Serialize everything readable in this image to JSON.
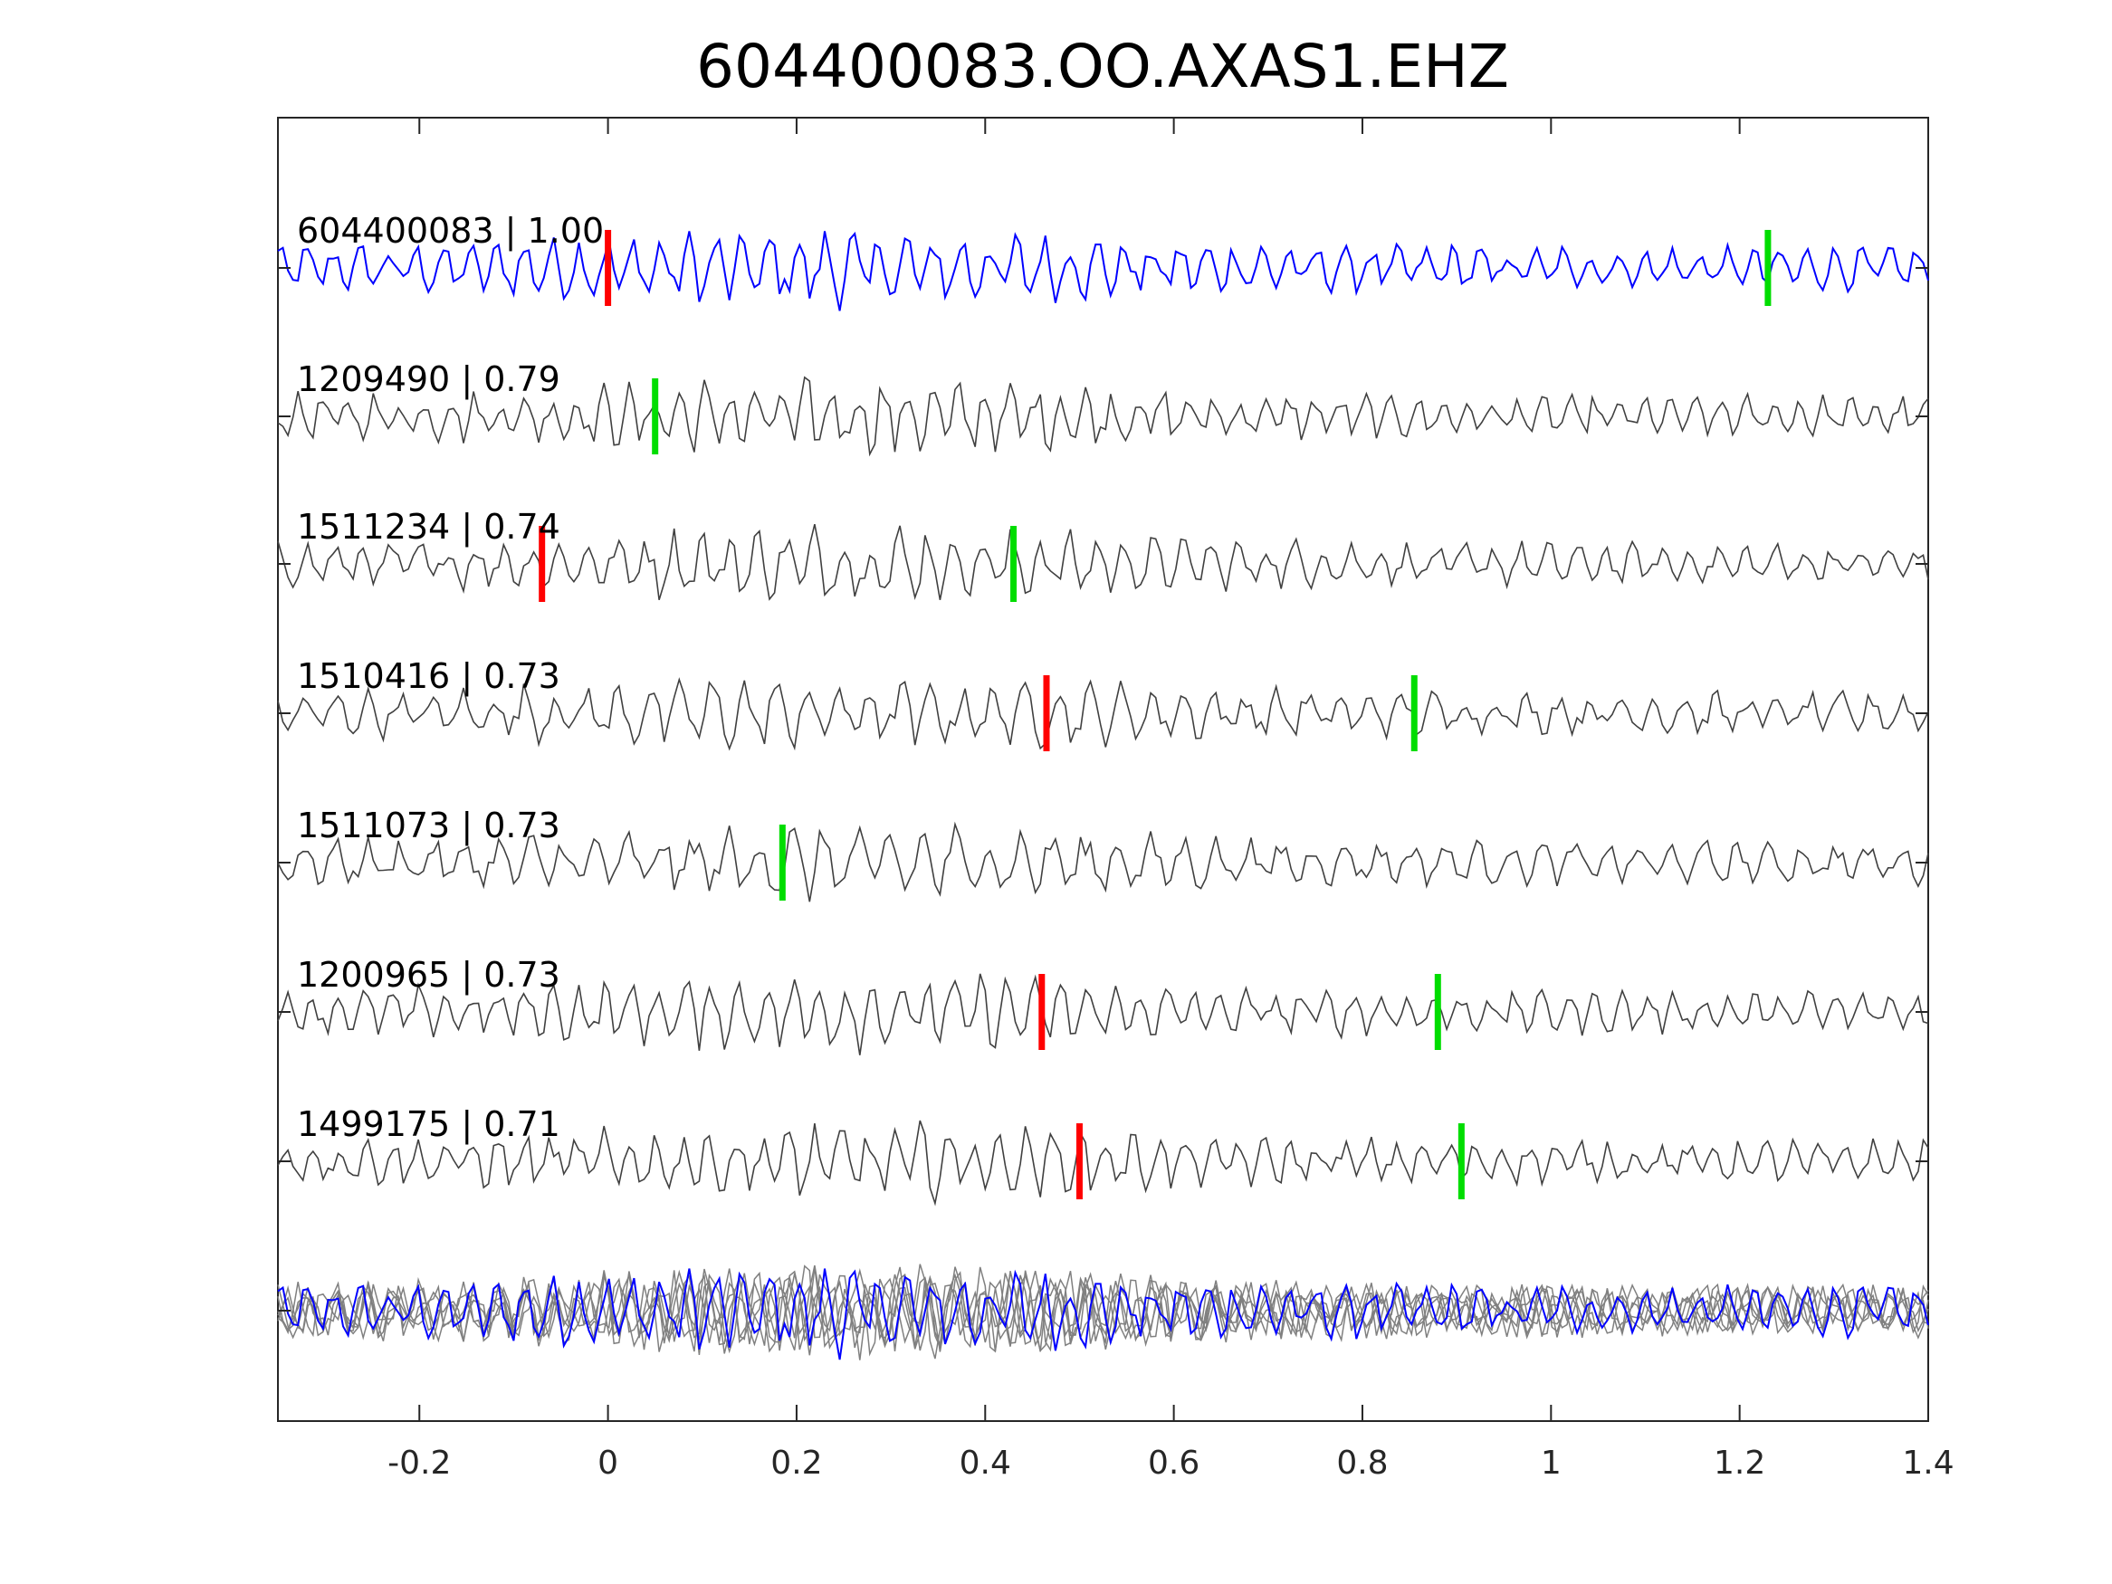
{
  "chart_data": {
    "type": "line",
    "title": "604400083.OO.AXAS1.EHZ",
    "xlabel": "",
    "ylabel": "",
    "xlim": [
      -0.35,
      1.4
    ],
    "xticks": [
      -0.2,
      0,
      0.2,
      0.4,
      0.6,
      0.8,
      1,
      1.2,
      1.4
    ],
    "xtick_labels": [
      "-0.2",
      "0",
      "0.2",
      "0.4",
      "0.6",
      "0.8",
      "1",
      "1.2",
      "1.4"
    ],
    "grid": false,
    "series": [
      {
        "name": "604400083",
        "cc": "1.00",
        "label": "604400083 | 1.00",
        "color": "#0000ff",
        "red_pick": 0.0,
        "green_pick": 1.23
      },
      {
        "name": "1209490",
        "cc": "0.79",
        "label": "1209490 | 0.79",
        "color": "#404040",
        "red_pick": null,
        "green_pick": 0.05
      },
      {
        "name": "1511234",
        "cc": "0.74",
        "label": "1511234 | 0.74",
        "color": "#404040",
        "red_pick": -0.07,
        "green_pick": 0.43
      },
      {
        "name": "1510416",
        "cc": "0.73",
        "label": "1510416 | 0.73",
        "color": "#404040",
        "red_pick": 0.465,
        "green_pick": 0.855
      },
      {
        "name": "1511073",
        "cc": "0.73",
        "label": "1511073 | 0.73",
        "color": "#404040",
        "red_pick": null,
        "green_pick": 0.185
      },
      {
        "name": "1200965",
        "cc": "0.73",
        "label": "1200965 | 0.73",
        "color": "#404040",
        "red_pick": 0.46,
        "green_pick": 0.88
      },
      {
        "name": "1499175",
        "cc": "0.71",
        "label": "1499175 | 0.71",
        "color": "#404040",
        "red_pick": 0.5,
        "green_pick": 0.905
      }
    ],
    "stack": {
      "description": "overlay of all traces",
      "template_color": "#0000ff",
      "others_color": "#808080"
    },
    "pick_colors": {
      "red": "#ff0000",
      "green": "#00dd00"
    }
  }
}
